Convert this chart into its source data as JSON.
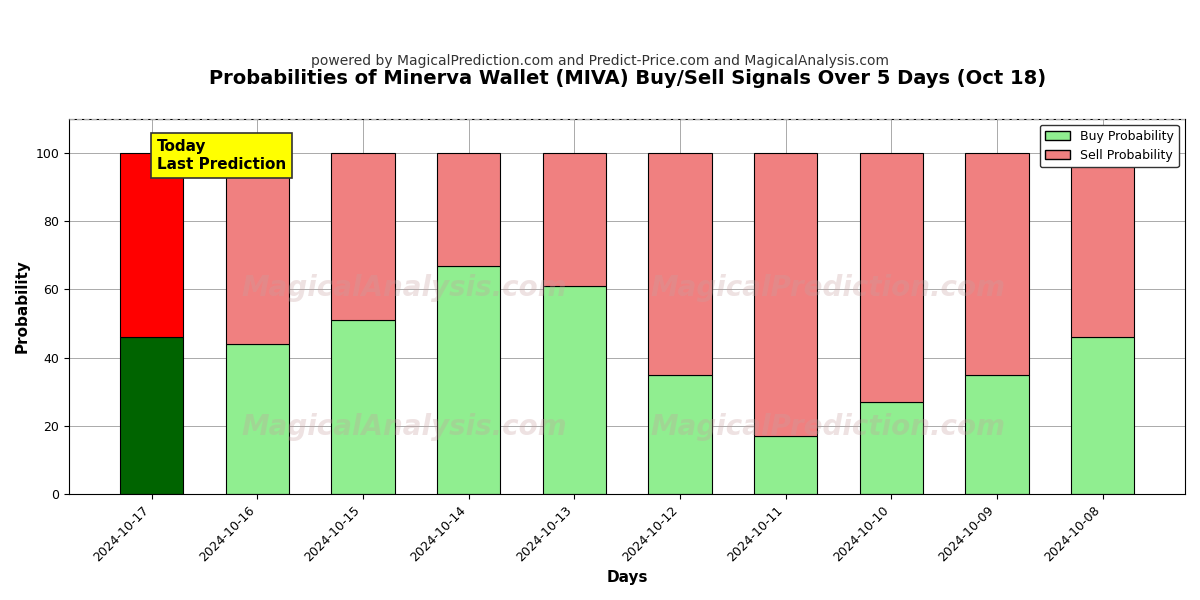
{
  "title": "Probabilities of Minerva Wallet (MIVA) Buy/Sell Signals Over 5 Days (Oct 18)",
  "subtitle": "powered by MagicalPrediction.com and Predict-Price.com and MagicalAnalysis.com",
  "xlabel": "Days",
  "ylabel": "Probability",
  "watermark1": "MagicalAnalysis.com",
  "watermark2": "MagicalPrediction.com",
  "dates": [
    "2024-10-17",
    "2024-10-16",
    "2024-10-15",
    "2024-10-14",
    "2024-10-13",
    "2024-10-12",
    "2024-10-11",
    "2024-10-10",
    "2024-10-09",
    "2024-10-08"
  ],
  "buy_probs": [
    46,
    44,
    51,
    67,
    61,
    35,
    17,
    27,
    35,
    46
  ],
  "sell_probs": [
    54,
    56,
    49,
    33,
    39,
    65,
    83,
    73,
    65,
    54
  ],
  "buy_color_today": "#006400",
  "sell_color_today": "#FF0000",
  "buy_color_hist": "#90EE90",
  "sell_color_hist": "#F08080",
  "bar_edge_color": "#000000",
  "bar_edge_width": 0.8,
  "ylim_max": 110,
  "yticks": [
    0,
    20,
    40,
    60,
    80,
    100
  ],
  "dashed_line_y": 110,
  "legend_buy_label": "Buy Probability",
  "legend_sell_label": "Sell Probability",
  "today_label_line1": "Today",
  "today_label_line2": "Last Prediction",
  "today_box_color": "#FFFF00",
  "grid_color": "#aaaaaa",
  "background_color": "#ffffff",
  "title_fontsize": 14,
  "subtitle_fontsize": 10,
  "axis_label_fontsize": 11,
  "tick_fontsize": 9,
  "today_text_fontsize": 11,
  "watermark_color": "#c8a0a0",
  "watermark_alpha": 0.3
}
